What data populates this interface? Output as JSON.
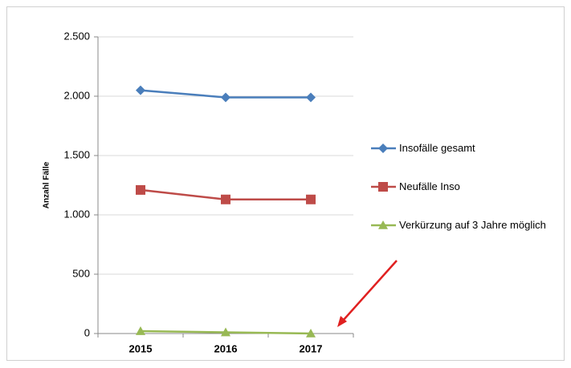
{
  "chart_data": {
    "type": "line",
    "y_label": "Anzahl Fälle",
    "categories": [
      "2015",
      "2016",
      "2017"
    ],
    "series": [
      {
        "name": "Insofälle gesamt",
        "color": "#4a7ebb",
        "marker": "diamond",
        "values": [
          2050,
          1990,
          1990
        ]
      },
      {
        "name": "Neufälle Inso",
        "color": "#be4b48",
        "marker": "square",
        "values": [
          1210,
          1130,
          1130
        ]
      },
      {
        "name": "Verkürzung auf 3 Jahre möglich",
        "color": "#98b954",
        "marker": "triangle",
        "values": [
          20,
          10,
          0
        ]
      }
    ],
    "ylim": [
      0,
      2500
    ],
    "yticks": [
      0,
      500,
      {
        "value": 1000,
        "label": "1.000"
      },
      {
        "value": 1500,
        "label": "1.500"
      },
      {
        "value": 2000,
        "label": "2.000"
      },
      {
        "value": 2500,
        "label": "2.500"
      }
    ],
    "grid": true,
    "legend": "right"
  }
}
